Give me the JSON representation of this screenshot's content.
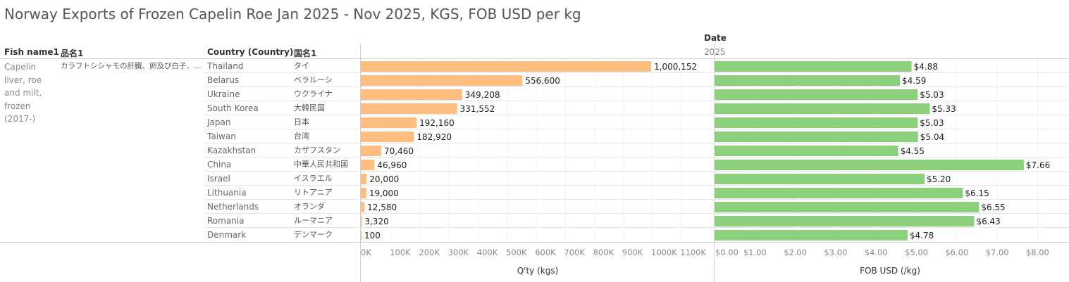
{
  "title": "Norway Exports of Frozen Capelin Roe Jan 2025 - Nov 2025, KGS, FOB USD per kg",
  "headers": {
    "fish_name": "Fish name1",
    "fish_name_jp": "品名1",
    "country": "Country (Country)",
    "country_jp": "国名1",
    "date": "Date",
    "year": "2025"
  },
  "fish": {
    "name": "Capelin liver, roe and milt, frozen (2017-)",
    "name_jp": "カラフトシシャモの肝臓、卵及び白子、冷.."
  },
  "colors": {
    "qty_bar": "#ffbd7f",
    "fob_bar": "#8bd17c"
  },
  "chart_data": [
    {
      "type": "bar",
      "orientation": "horizontal",
      "title": "",
      "xlabel": "Q'ty (kgs)",
      "xlim": [
        0,
        1150000
      ],
      "ticks": [
        "0K",
        "100K",
        "200K",
        "300K",
        "400K",
        "500K",
        "600K",
        "700K",
        "800K",
        "900K",
        "1000K",
        "1100K"
      ],
      "categories": [
        "Thailand",
        "Belarus",
        "Ukraine",
        "South Korea",
        "Japan",
        "Taiwan",
        "Kazakhstan",
        "China",
        "Israel",
        "Lithuania",
        "Netherlands",
        "Romania",
        "Denmark"
      ],
      "categories_jp": [
        "タイ",
        "ベラルーシ",
        "ウクライナ",
        "大韓民国",
        "日本",
        "台湾",
        "カザフスタン",
        "中華人民共和国",
        "イスラエル",
        "リトアニア",
        "オランダ",
        "ルーマニア",
        "デンマーク"
      ],
      "values": [
        1000152,
        556600,
        349208,
        331552,
        192160,
        182920,
        70460,
        46960,
        20000,
        19000,
        12580,
        3320,
        100
      ],
      "labels": [
        "1,000,152",
        "556,600",
        "349,208",
        "331,552",
        "192,160",
        "182,920",
        "70,460",
        "46,960",
        "20,000",
        "19,000",
        "12,580",
        "3,320",
        "100"
      ]
    },
    {
      "type": "bar",
      "orientation": "horizontal",
      "title": "",
      "xlabel": "FOB USD (/kg)",
      "xlim": [
        0,
        8.75
      ],
      "ticks": [
        "$0.00",
        "$1.00",
        "$2.00",
        "$3.00",
        "$4.00",
        "$5.00",
        "$6.00",
        "$7.00",
        "$8.00"
      ],
      "categories": [
        "Thailand",
        "Belarus",
        "Ukraine",
        "South Korea",
        "Japan",
        "Taiwan",
        "Kazakhstan",
        "China",
        "Israel",
        "Lithuania",
        "Netherlands",
        "Romania",
        "Denmark"
      ],
      "values": [
        4.88,
        4.59,
        5.03,
        5.33,
        5.03,
        5.04,
        4.55,
        7.66,
        5.2,
        6.15,
        6.55,
        6.43,
        4.78
      ],
      "labels": [
        "$4.88",
        "$4.59",
        "$5.03",
        "$5.33",
        "$5.03",
        "$5.04",
        "$4.55",
        "$7.66",
        "$5.20",
        "$6.15",
        "$6.55",
        "$6.43",
        "$4.78"
      ]
    }
  ]
}
